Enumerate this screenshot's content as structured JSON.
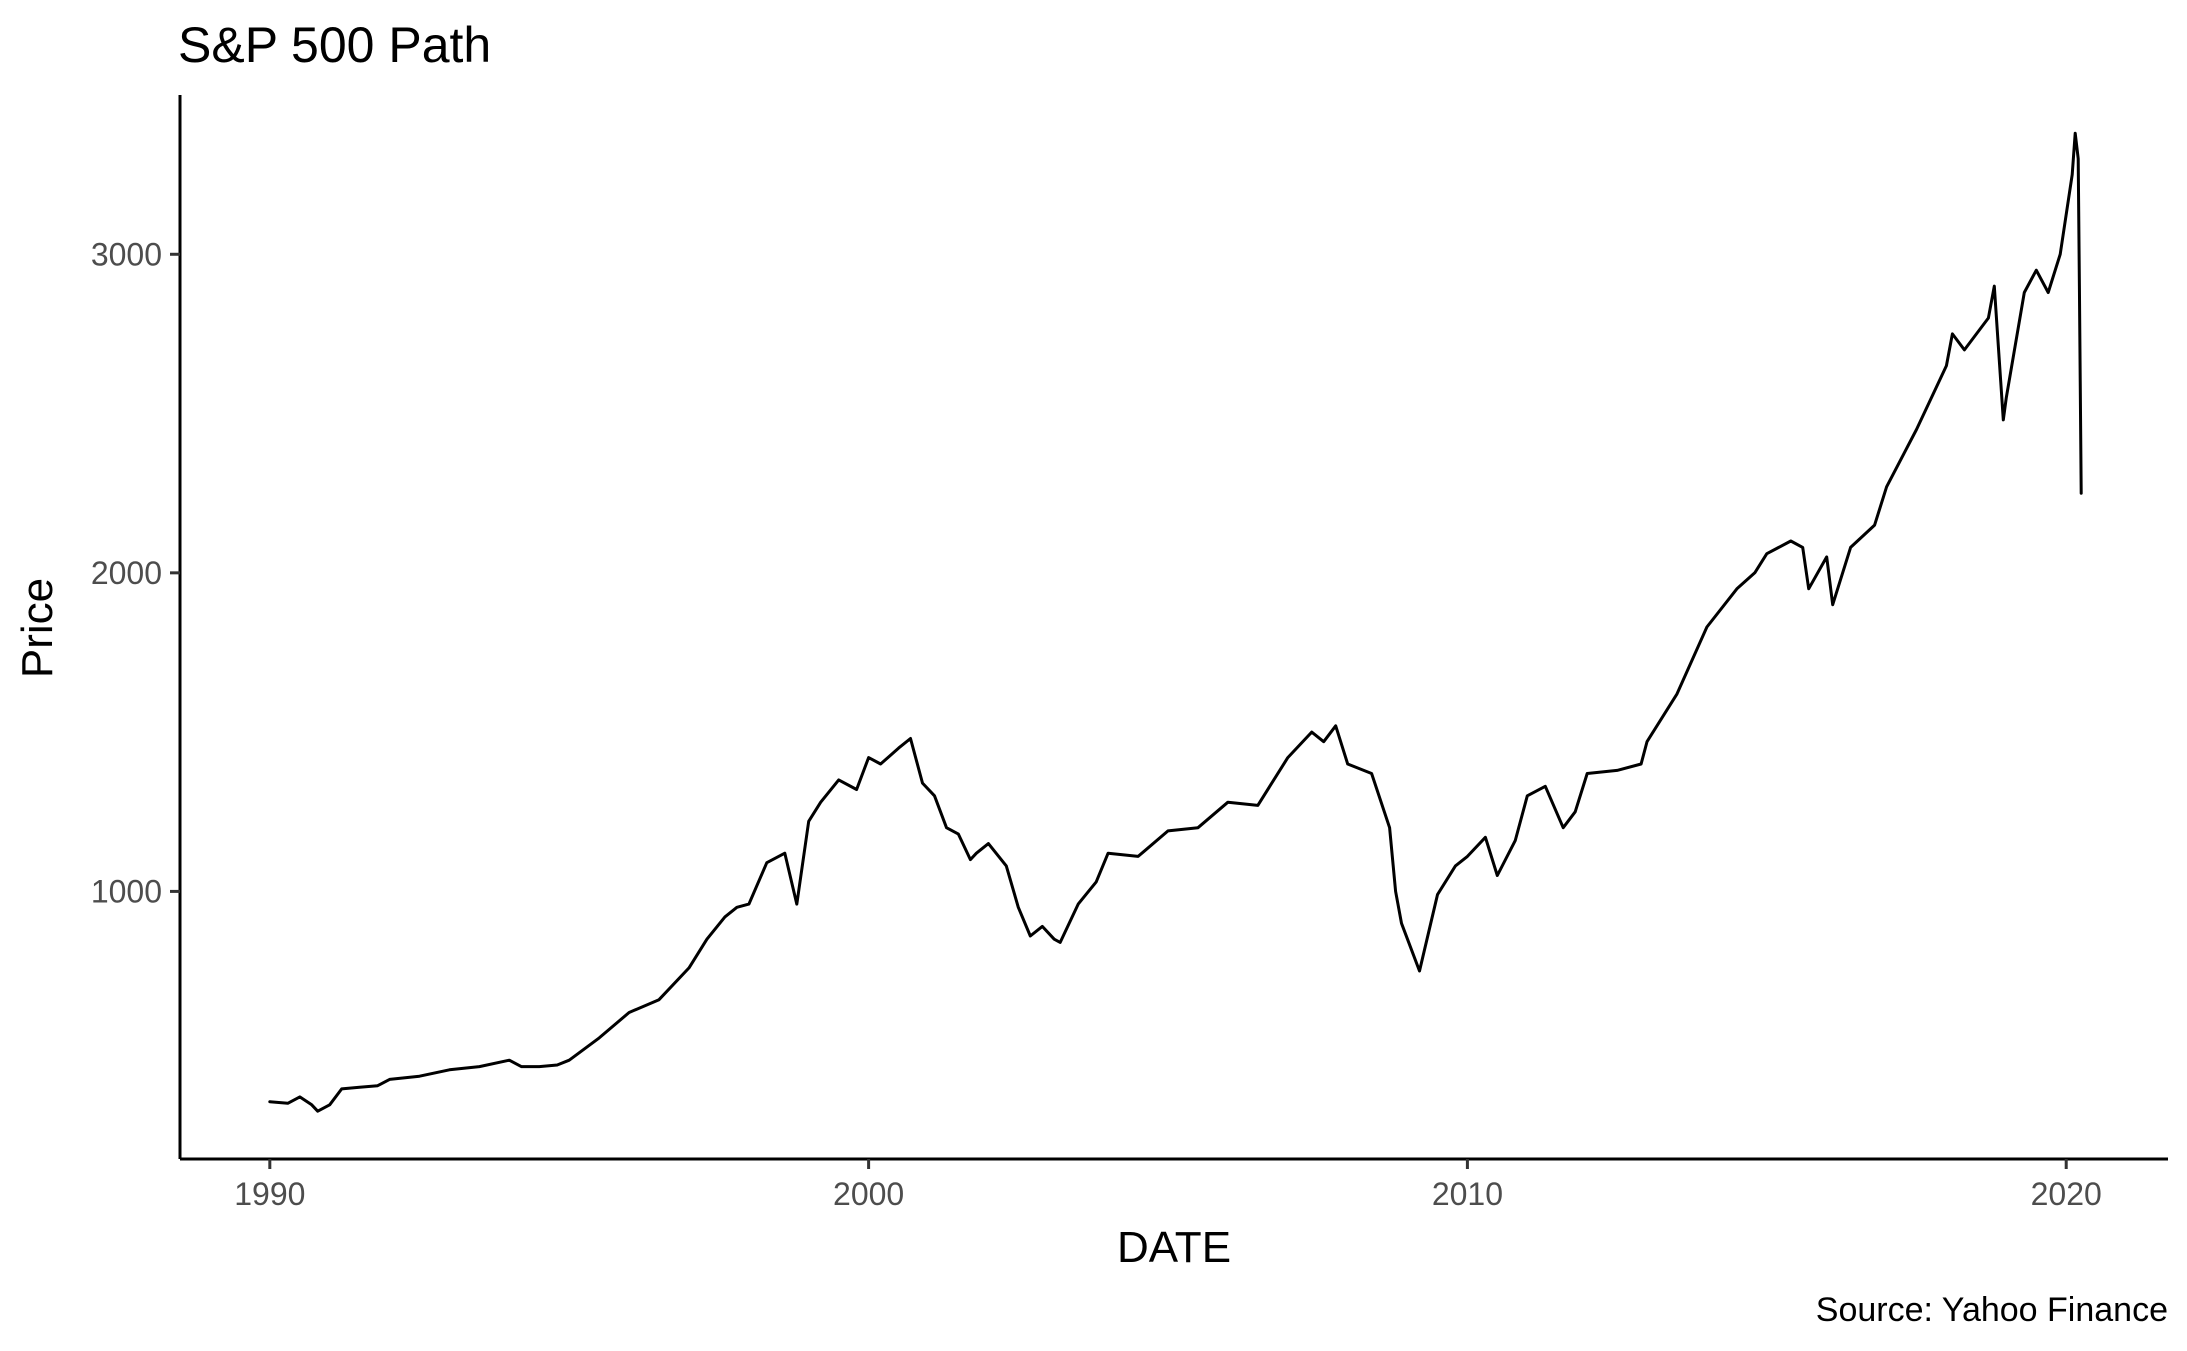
{
  "chart_data": {
    "type": "line",
    "title": "S&P 500 Path",
    "xlabel": "DATE",
    "ylabel": "Price",
    "caption": "Source: Yahoo Finance",
    "xlim": [
      1988.5,
      2021.7
    ],
    "ylim": [
      160,
      3500
    ],
    "x_ticks": [
      {
        "value": 1990,
        "label": "1990"
      },
      {
        "value": 2000,
        "label": "2000"
      },
      {
        "value": 2010,
        "label": "2010"
      },
      {
        "value": 2020,
        "label": "2020"
      }
    ],
    "y_ticks": [
      {
        "value": 1000,
        "label": "1000"
      },
      {
        "value": 2000,
        "label": "2000"
      },
      {
        "value": 3000,
        "label": "3000"
      }
    ],
    "grid": false,
    "legend": "none",
    "line_color": "#000000",
    "series": [
      {
        "x": [
          1990.0,
          1990.3,
          1990.5,
          1990.7,
          1990.8,
          1991.0,
          1991.2,
          1991.5,
          1991.8,
          1992.0,
          1992.5,
          1993.0,
          1993.5,
          1994.0,
          1994.2,
          1994.5,
          1994.8,
          1995.0,
          1995.5,
          1996.0,
          1996.5,
          1997.0,
          1997.3,
          1997.6,
          1997.8,
          1998.0,
          1998.3,
          1998.6,
          1998.8,
          1999.0,
          1999.2,
          1999.5,
          1999.8,
          2000.0,
          2000.2,
          2000.5,
          2000.7,
          2000.9,
          2001.1,
          2001.3,
          2001.5,
          2001.7,
          2001.8,
          2002.0,
          2002.3,
          2002.5,
          2002.7,
          2002.9,
          2003.1,
          2003.2,
          2003.5,
          2003.8,
          2004.0,
          2004.5,
          2005.0,
          2005.5,
          2006.0,
          2006.5,
          2007.0,
          2007.4,
          2007.6,
          2007.8,
          2008.0,
          2008.4,
          2008.7,
          2008.8,
          2008.9,
          2009.0,
          2009.2,
          2009.5,
          2009.8,
          2010.0,
          2010.3,
          2010.5,
          2010.8,
          2011.0,
          2011.3,
          2011.6,
          2011.8,
          2012.0,
          2012.5,
          2012.9,
          2013.0,
          2013.5,
          2014.0,
          2014.5,
          2014.8,
          2015.0,
          2015.4,
          2015.6,
          2015.7,
          2016.0,
          2016.1,
          2016.4,
          2016.8,
          2017.0,
          2017.5,
          2018.0,
          2018.1,
          2018.3,
          2018.7,
          2018.8,
          2018.95,
          2019.0,
          2019.3,
          2019.5,
          2019.7,
          2019.9,
          2020.1,
          2020.15,
          2020.2,
          2020.22,
          2020.25
        ],
        "y": [
          340,
          335,
          355,
          330,
          310,
          330,
          380,
          385,
          390,
          410,
          420,
          440,
          450,
          470,
          450,
          450,
          455,
          470,
          540,
          620,
          660,
          760,
          850,
          920,
          950,
          960,
          1090,
          1120,
          960,
          1220,
          1280,
          1350,
          1320,
          1420,
          1400,
          1450,
          1480,
          1340,
          1300,
          1200,
          1180,
          1100,
          1120,
          1150,
          1080,
          950,
          860,
          890,
          850,
          840,
          960,
          1030,
          1120,
          1110,
          1190,
          1200,
          1280,
          1270,
          1420,
          1500,
          1470,
          1520,
          1400,
          1370,
          1200,
          1000,
          900,
          850,
          750,
          990,
          1080,
          1110,
          1170,
          1050,
          1160,
          1300,
          1330,
          1200,
          1250,
          1370,
          1380,
          1400,
          1470,
          1620,
          1830,
          1950,
          2000,
          2060,
          2100,
          2080,
          1950,
          2050,
          1900,
          2080,
          2150,
          2270,
          2450,
          2650,
          2750,
          2700,
          2800,
          2900,
          2480,
          2550,
          2880,
          2950,
          2880,
          3000,
          3250,
          3380,
          3300,
          2900,
          2250
        ]
      }
    ]
  }
}
